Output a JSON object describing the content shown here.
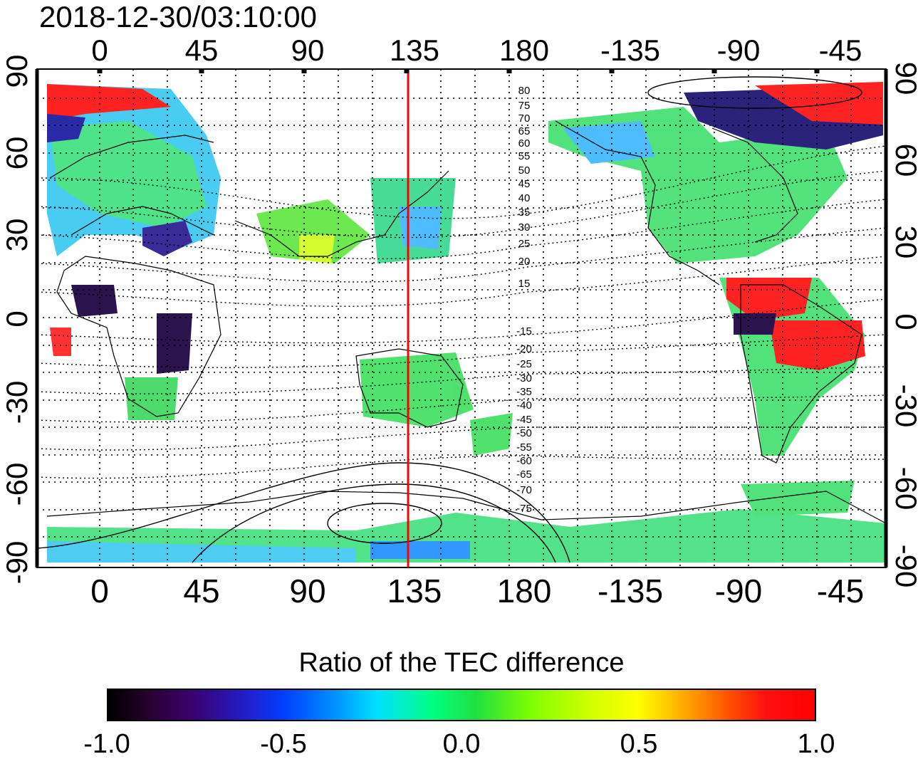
{
  "title": "2018-12-30/03:10:00",
  "map": {
    "projection": "equirectangular",
    "lon_ticks_top": [
      "0",
      "45",
      "90",
      "135",
      "180",
      "-135",
      "-90",
      "-45"
    ],
    "lon_ticks_bottom": [
      "0",
      "45",
      "90",
      "135",
      "180",
      "-135",
      "-90",
      "-45"
    ],
    "lat_ticks_left": [
      "90",
      "60",
      "30",
      "0",
      "-30",
      "-60",
      "-90"
    ],
    "lat_ticks_right": [
      "90",
      "60",
      "30",
      "0",
      "-30",
      "-60",
      "-90"
    ],
    "noon_meridian_color": "#ff0000",
    "contour_labels_north": [
      "80",
      "75",
      "70",
      "65",
      "60",
      "55",
      "50",
      "45",
      "40",
      "35",
      "30",
      "25",
      "20",
      "15"
    ],
    "contour_labels_south": [
      "-15",
      "-20",
      "-25",
      "-30",
      "-35",
      "-40",
      "-45",
      "-50",
      "-55",
      "-60",
      "-65",
      "-70",
      "-75"
    ]
  },
  "colorbar": {
    "title": "Ratio of the TEC difference",
    "ticks": [
      "-1.0",
      "-0.5",
      "0.0",
      "0.5",
      "1.0"
    ],
    "range": [
      -1.0,
      1.0
    ]
  }
}
